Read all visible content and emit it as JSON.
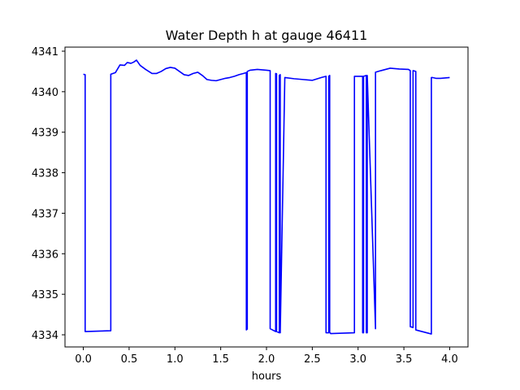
{
  "chart_data": {
    "type": "line",
    "title": "Water Depth h at gauge 46411",
    "xlabel": "hours",
    "ylabel": "",
    "xlim": [
      -0.2,
      4.2
    ],
    "ylim": [
      4333.7,
      4341.1
    ],
    "xticks": [
      0.0,
      0.5,
      1.0,
      1.5,
      2.0,
      2.5,
      3.0,
      3.5,
      4.0
    ],
    "xtick_labels": [
      "0.0",
      "0.5",
      "1.0",
      "1.5",
      "2.0",
      "2.5",
      "3.0",
      "3.5",
      "4.0"
    ],
    "yticks": [
      4334,
      4335,
      4336,
      4337,
      4338,
      4339,
      4340,
      4341
    ],
    "ytick_labels": [
      "4334",
      "4335",
      "4336",
      "4337",
      "4338",
      "4339",
      "4340",
      "4341"
    ],
    "grid": false,
    "series": [
      {
        "color": "#0000ff",
        "x": [
          0.0,
          0.02,
          0.02,
          0.3,
          0.3,
          0.35,
          0.4,
          0.45,
          0.48,
          0.52,
          0.55,
          0.58,
          0.62,
          0.68,
          0.75,
          0.8,
          0.85,
          0.9,
          0.95,
          1.0,
          1.05,
          1.1,
          1.15,
          1.2,
          1.25,
          1.3,
          1.35,
          1.4,
          1.45,
          1.5,
          1.55,
          1.6,
          1.65,
          1.7,
          1.75,
          1.78,
          1.78,
          1.79,
          1.79,
          1.82,
          1.9,
          2.0,
          2.04,
          2.04,
          2.1,
          2.1,
          2.11,
          2.11,
          2.14,
          2.14,
          2.15,
          2.15,
          2.2,
          2.3,
          2.4,
          2.5,
          2.6,
          2.65,
          2.65,
          2.68,
          2.68,
          2.69,
          2.69,
          2.7,
          2.7,
          2.96,
          2.96,
          3.05,
          3.05,
          3.06,
          3.06,
          3.09,
          3.09,
          3.1,
          3.1,
          3.19,
          3.19,
          3.25,
          3.35,
          3.45,
          3.55,
          3.57,
          3.57,
          3.6,
          3.6,
          3.63,
          3.63,
          3.8,
          3.8,
          3.81,
          3.85,
          3.9,
          4.0
        ],
        "y": [
          4340.43,
          4340.42,
          4334.08,
          4334.1,
          4340.43,
          4340.47,
          4340.66,
          4340.65,
          4340.72,
          4340.7,
          4340.73,
          4340.78,
          4340.65,
          4340.55,
          4340.45,
          4340.45,
          4340.5,
          4340.57,
          4340.6,
          4340.58,
          4340.5,
          4340.42,
          4340.4,
          4340.45,
          4340.48,
          4340.4,
          4340.3,
          4340.28,
          4340.27,
          4340.3,
          4340.33,
          4340.35,
          4340.38,
          4340.42,
          4340.45,
          4340.47,
          4334.12,
          4334.14,
          4340.5,
          4340.53,
          4340.55,
          4340.53,
          4340.52,
          4334.15,
          4334.08,
          4340.45,
          4340.44,
          4334.08,
          4334.05,
          4340.4,
          4340.42,
          4334.05,
          4340.35,
          4340.32,
          4340.3,
          4340.28,
          4340.35,
          4340.38,
          4334.05,
          4334.05,
          4340.38,
          4340.4,
          4334.05,
          4334.04,
          4334.03,
          4334.05,
          4340.38,
          4340.38,
          4334.05,
          4334.05,
          4340.38,
          4340.4,
          4334.05,
          4334.05,
          4340.4,
          4334.15,
          4340.48,
          4340.52,
          4340.58,
          4340.56,
          4340.55,
          4340.52,
          4334.2,
          4334.18,
          4340.52,
          4340.5,
          4334.12,
          4334.02,
          4340.35,
          4340.35,
          4340.33,
          4340.33,
          4340.35
        ]
      }
    ]
  }
}
